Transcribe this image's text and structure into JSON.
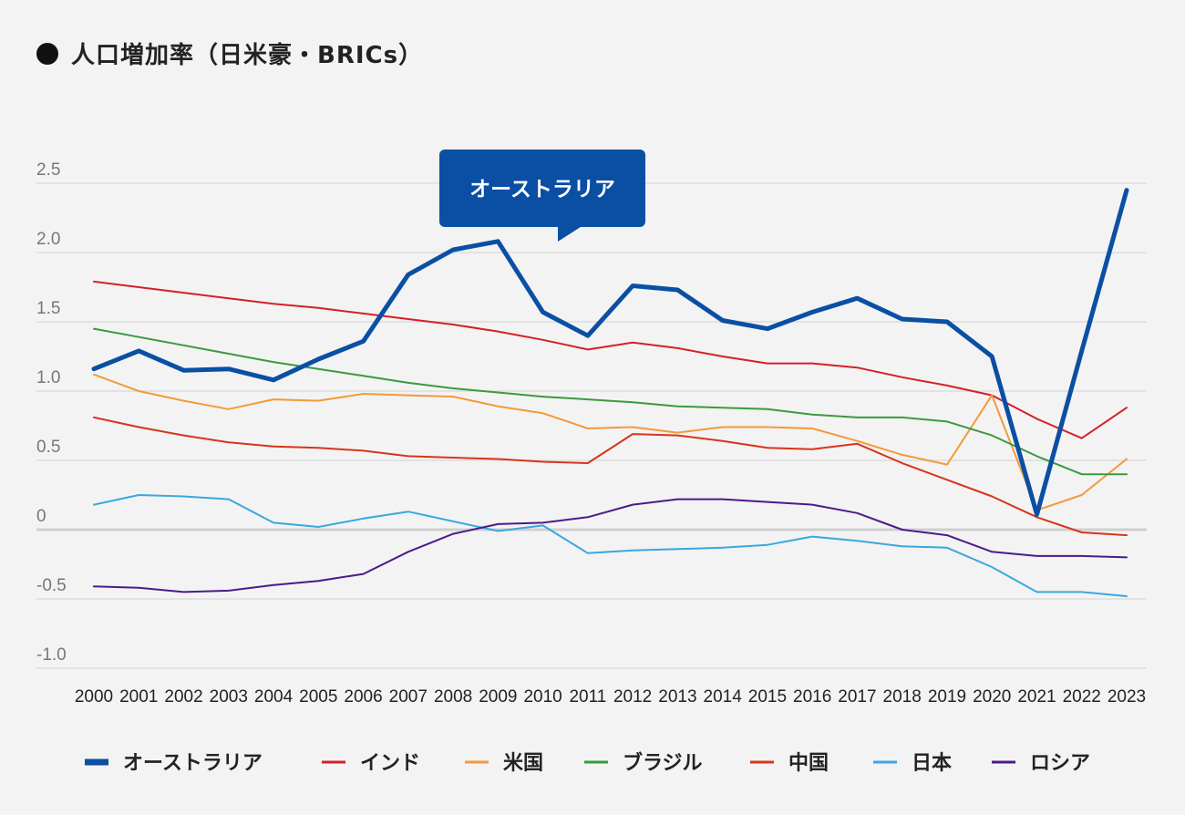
{
  "chart_data": {
    "type": "line",
    "title": "人口増加率（日米豪・BRICs）",
    "categories": [
      "2000",
      "2001",
      "2002",
      "2003",
      "2004",
      "2005",
      "2006",
      "2007",
      "2008",
      "2009",
      "2010",
      "2011",
      "2012",
      "2013",
      "2014",
      "2015",
      "2016",
      "2017",
      "2018",
      "2019",
      "2020",
      "2021",
      "2022",
      "2023"
    ],
    "y_ticks": [
      "2.5",
      "2.0",
      "1.5",
      "1.0",
      "0.5",
      "0",
      "-0.5",
      "-1.0"
    ],
    "y_tick_values": [
      2.5,
      2.0,
      1.5,
      1.0,
      0.5,
      0,
      -0.5,
      -1.0
    ],
    "ylim": [
      -1.0,
      2.5
    ],
    "grid": true,
    "legend_position": "bottom",
    "highlight_series": "オーストラリア",
    "tooltip": "オーストラリア",
    "series": [
      {
        "name": "オーストラリア",
        "color": "#0a4fa3",
        "emphasis": true,
        "values": [
          1.16,
          1.29,
          1.15,
          1.16,
          1.08,
          1.23,
          1.36,
          1.84,
          2.02,
          2.08,
          1.57,
          1.4,
          1.76,
          1.73,
          1.51,
          1.45,
          1.57,
          1.67,
          1.52,
          1.5,
          1.25,
          0.11,
          1.29,
          2.45
        ]
      },
      {
        "name": "インド",
        "color": "#d4202a",
        "values": [
          1.79,
          1.75,
          1.71,
          1.67,
          1.63,
          1.6,
          1.56,
          1.52,
          1.48,
          1.43,
          1.37,
          1.3,
          1.35,
          1.31,
          1.25,
          1.2,
          1.2,
          1.17,
          1.1,
          1.04,
          0.97,
          0.8,
          0.66,
          0.88
        ]
      },
      {
        "name": "米国",
        "color": "#f39a3a",
        "values": [
          1.12,
          1.0,
          0.93,
          0.87,
          0.94,
          0.93,
          0.98,
          0.97,
          0.96,
          0.89,
          0.84,
          0.73,
          0.74,
          0.7,
          0.74,
          0.74,
          0.73,
          0.64,
          0.54,
          0.47,
          0.97,
          0.14,
          0.25,
          0.51
        ]
      },
      {
        "name": "ブラジル",
        "color": "#3a9a3e",
        "values": [
          1.45,
          1.39,
          1.33,
          1.27,
          1.21,
          1.16,
          1.11,
          1.06,
          1.02,
          0.99,
          0.96,
          0.94,
          0.92,
          0.89,
          0.88,
          0.87,
          0.83,
          0.81,
          0.81,
          0.78,
          0.68,
          0.53,
          0.4,
          0.4
        ]
      },
      {
        "name": "中国",
        "color": "#d8341c",
        "values": [
          0.81,
          0.74,
          0.68,
          0.63,
          0.6,
          0.59,
          0.57,
          0.53,
          0.52,
          0.51,
          0.49,
          0.48,
          0.69,
          0.68,
          0.64,
          0.59,
          0.58,
          0.62,
          0.48,
          0.36,
          0.24,
          0.09,
          -0.02,
          -0.04
        ]
      },
      {
        "name": "日本",
        "color": "#3aa7e0",
        "values": [
          0.18,
          0.25,
          0.24,
          0.22,
          0.05,
          0.02,
          0.08,
          0.13,
          0.06,
          -0.01,
          0.03,
          -0.17,
          -0.15,
          -0.14,
          -0.13,
          -0.11,
          -0.05,
          -0.08,
          -0.12,
          -0.13,
          -0.27,
          -0.45,
          -0.45,
          -0.48
        ]
      },
      {
        "name": "ロシア",
        "color": "#4b1a8c",
        "values": [
          -0.41,
          -0.42,
          -0.45,
          -0.44,
          -0.4,
          -0.37,
          -0.32,
          -0.16,
          -0.03,
          0.04,
          0.05,
          0.09,
          0.18,
          0.22,
          0.22,
          0.2,
          0.18,
          0.12,
          0.0,
          -0.04,
          -0.16,
          -0.19,
          -0.19,
          -0.2
        ]
      }
    ]
  }
}
